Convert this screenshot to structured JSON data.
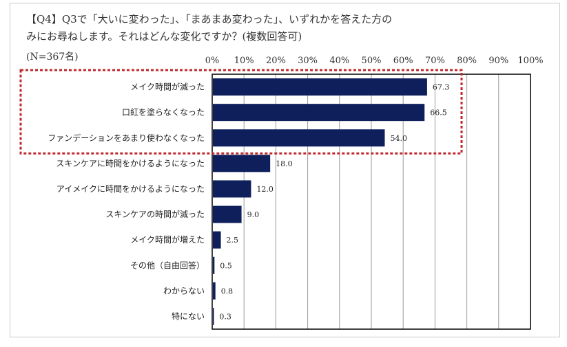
{
  "title_lines": [
    "【Q4】Q3で「大いに変わった」、「まあまあ変わった」、いずれかを答えた方の",
    "みにお尋ねします。それはどんな変化ですか？(複数回答可)"
  ],
  "sample_label": "(N=367名)",
  "colors": {
    "bar": "#0f1f5c",
    "highlight": "#c0282d",
    "grid": "#9a9a9a",
    "axis": "#000000"
  },
  "chart_data": {
    "type": "bar",
    "orientation": "horizontal",
    "xlim": [
      0,
      100
    ],
    "x_ticks": [
      0,
      10,
      20,
      30,
      40,
      50,
      60,
      70,
      80,
      90,
      100
    ],
    "x_tick_labels": [
      "0%",
      "10%",
      "20%",
      "30%",
      "40%",
      "50%",
      "60%",
      "70%",
      "80%",
      "90%",
      "100%"
    ],
    "categories": [
      "メイク時間が減った",
      "口紅を塗らなくなった",
      "ファンデーションをあまり使わなくなった",
      "スキンケアに時間をかけるようになった",
      "アイメイクに時間をかけるようになった",
      "スキンケアの時間が減った",
      "メイク時間が増えた",
      "その他（自由回答）",
      "わからない",
      "特にない"
    ],
    "values": [
      67.3,
      66.5,
      54.0,
      18.0,
      12.0,
      9.0,
      2.5,
      0.5,
      0.8,
      0.3
    ],
    "value_labels": [
      "67.3",
      "66.5",
      "54.0",
      "18.0",
      "12.0",
      "9.0",
      "2.5",
      "0.5",
      "0.8",
      "0.3"
    ],
    "highlighted_indices": [
      0,
      1,
      2
    ]
  }
}
